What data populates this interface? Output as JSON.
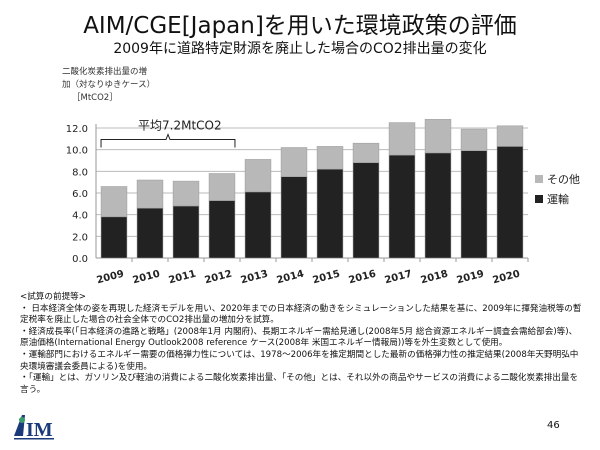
{
  "title": "AIM/CGE[Japan]を用いた環境政策の評価",
  "subtitle": "2009年に道路特定財源を廃止した場合のCO2排出量の変化",
  "chart_data": {
    "type": "bar",
    "stacked": true,
    "ylabel_lines": [
      "二酸化炭素排出量の増",
      "加（対なりゆきケース）",
      "［MtCO2］"
    ],
    "categories": [
      "2009",
      "2010",
      "2011",
      "2012",
      "2013",
      "2014",
      "2015",
      "2016",
      "2017",
      "2018",
      "2019",
      "2020"
    ],
    "series": [
      {
        "name": "運輸",
        "color": "#222222",
        "values": [
          3.8,
          4.6,
          4.8,
          5.3,
          6.1,
          7.5,
          8.2,
          8.8,
          9.5,
          9.7,
          9.9,
          10.3
        ]
      },
      {
        "name": "その他",
        "color": "#b8b8b8",
        "values": [
          2.8,
          2.6,
          2.3,
          2.5,
          3.0,
          2.7,
          2.1,
          1.8,
          3.0,
          3.1,
          2.0,
          1.9
        ]
      }
    ],
    "ylim": [
      0,
      12
    ],
    "yticks": [
      "0.0",
      "2.0",
      "4.0",
      "6.0",
      "8.0",
      "10.0",
      "12.0"
    ],
    "grid": true,
    "legend_position": "right",
    "legend_order": [
      "その他",
      "運輸"
    ],
    "annotation": {
      "text": "平均7.2MtCO2",
      "span": [
        "2009",
        "2012"
      ]
    }
  },
  "notes": {
    "heading": "<試算の前提等>",
    "items": [
      "・ 日本経済全体の姿を再現した経済モデルを用い、2020年までの日本経済の動きをシミュレーションした結果を基に、2009年に揮発油税等の暫定税率を廃止した場合の社会全体でのCO2排出量の増加分を試算。",
      "・経済成長率(「日本経済の進路と戦略」(2008年1月 内閣府)、長期エネルギー需給見通し(2008年5月 総合資源エネルギー調査会需給部会)等)、原油価格(International Energy Outlook2008 reference ケース(2008年 米国エネルギー情報局))等を外生変数として使用。",
      "・運輸部門におけるエネルギー需要の価格弾力性については、1978～2006年を推定期間とした最新の価格弾力性の推定結果(2008年天野明弘中央環境審議会委員による)を使用。",
      "・「運輸」とは、ガソリン及び軽油の消費による二酸化炭素排出量、「その他」とは、それ以外の商品やサービスの消費による二酸化炭素排出量を言う。"
    ]
  },
  "logo_text": "AIM",
  "page_number": "46"
}
